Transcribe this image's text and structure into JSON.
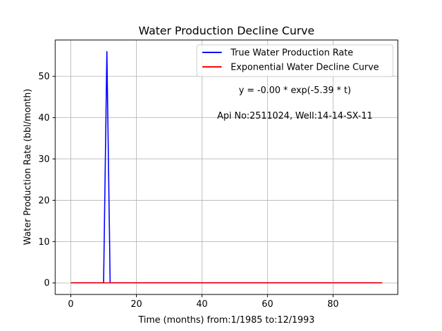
{
  "chart_data": {
    "type": "line",
    "title": "Water Production Decline Curve",
    "xlabel": "Time (months) from:1/1985 to:12/1993",
    "ylabel": "Water Production Rate (bbl/month)",
    "xlim": [
      -4.75,
      99.75
    ],
    "ylim": [
      -2.8,
      58.8
    ],
    "xticks": [
      0,
      20,
      40,
      60,
      80
    ],
    "yticks": [
      0,
      10,
      20,
      30,
      40,
      50
    ],
    "grid": true,
    "legend_position": "top-right",
    "series": [
      {
        "name": "True Water Production Rate",
        "color": "#0000ff",
        "x": [
          0,
          1,
          2,
          3,
          4,
          5,
          6,
          7,
          8,
          9,
          10,
          11,
          12,
          13,
          14,
          15,
          16,
          17,
          18,
          19,
          20,
          21,
          22,
          23,
          24,
          25,
          26,
          27,
          28,
          29,
          30,
          31,
          32,
          33,
          34,
          35,
          36,
          37,
          38,
          39,
          40,
          41,
          42,
          43,
          44,
          45,
          46,
          47,
          48,
          49,
          50,
          51,
          52,
          53,
          54,
          55,
          56,
          57,
          58,
          59,
          60,
          61,
          62,
          63,
          64,
          65,
          66,
          67,
          68,
          69,
          70,
          71,
          72,
          73,
          74,
          75,
          76,
          77,
          78,
          79,
          80,
          81,
          82,
          83,
          84,
          85,
          86,
          87,
          88,
          89,
          90,
          91,
          92,
          93,
          94,
          95
        ],
        "y": [
          0,
          0,
          0,
          0,
          0,
          0,
          0,
          0,
          0,
          0,
          0,
          56,
          0,
          0,
          0,
          0,
          0,
          0,
          0,
          0,
          0,
          0,
          0,
          0,
          0,
          0,
          0,
          0,
          0,
          0,
          0,
          0,
          0,
          0,
          0,
          0,
          0,
          0,
          0,
          0,
          0,
          0,
          0,
          0,
          0,
          0,
          0,
          0,
          0,
          0,
          0,
          0,
          0,
          0,
          0,
          0,
          0,
          0,
          0,
          0,
          0,
          0,
          0,
          0,
          0,
          0,
          0,
          0,
          0,
          0,
          0,
          0,
          0,
          0,
          0,
          0,
          0,
          0,
          0,
          0,
          0,
          0,
          0,
          0,
          0,
          0,
          0,
          0,
          0,
          0,
          0,
          0,
          0,
          0,
          0,
          0
        ]
      },
      {
        "name": "Exponential Water Decline Curve",
        "color": "#ff0000",
        "x": [
          0,
          95
        ],
        "y": [
          0,
          0
        ]
      }
    ],
    "annotations": [
      "y = -0.00 * exp(-5.39 * t)",
      "Api No:2511024, Well:14-14-SX-11"
    ]
  }
}
